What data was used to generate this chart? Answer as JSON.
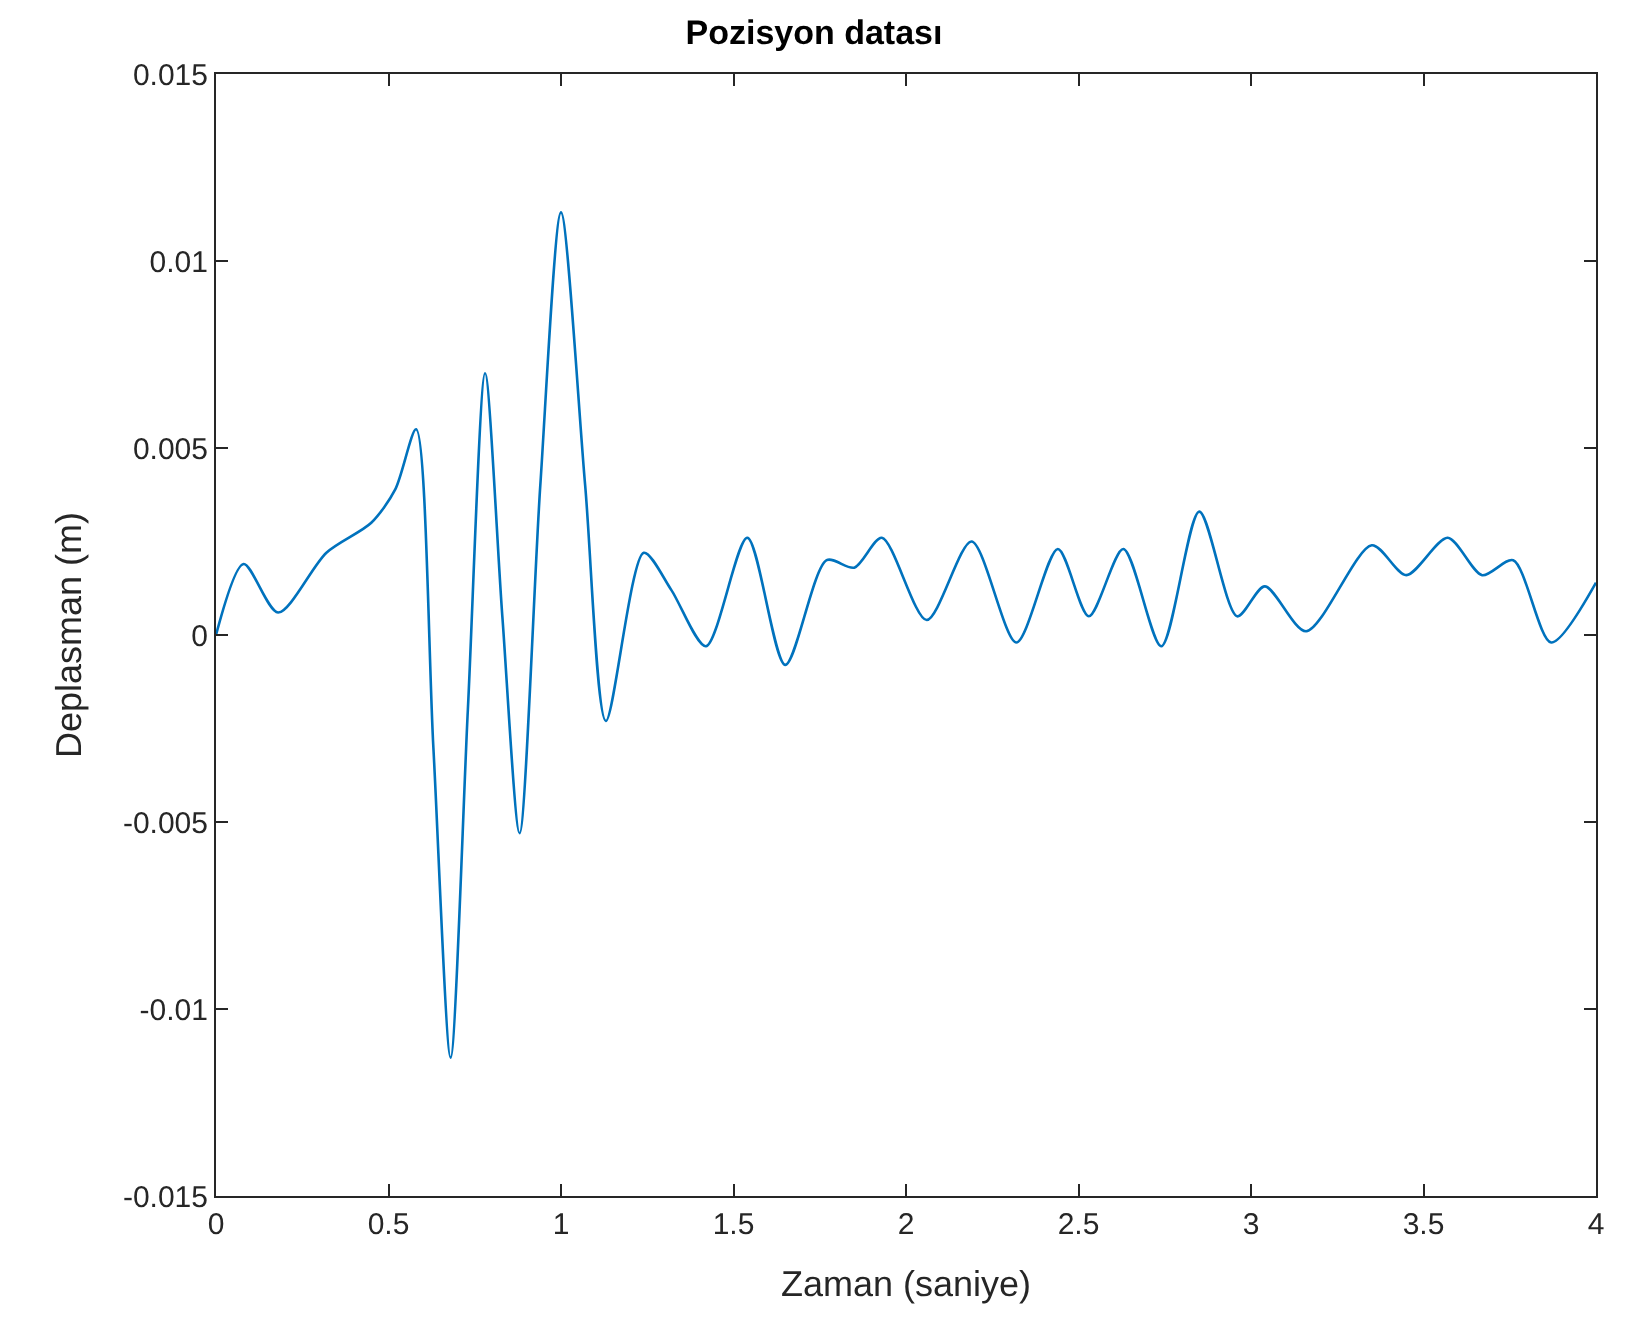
{
  "chart_data": {
    "type": "line",
    "title": "Pozisyon datası",
    "xlabel": "Zaman (saniye)",
    "ylabel": "Deplasman (m)",
    "xlim": [
      0,
      4
    ],
    "ylim": [
      -0.015,
      0.015
    ],
    "xticks": [
      0,
      0.5,
      1,
      1.5,
      2,
      2.5,
      3,
      3.5,
      4
    ],
    "yticks": [
      -0.015,
      -0.01,
      -0.005,
      0,
      0.005,
      0.01,
      0.015
    ],
    "marker": "none",
    "line_style": "solid",
    "x": [
      0,
      0.08,
      0.18,
      0.32,
      0.45,
      0.52,
      0.58,
      0.63,
      0.68,
      0.73,
      0.78,
      0.83,
      0.88,
      0.94,
      1.0,
      1.07,
      1.13,
      1.24,
      1.32,
      1.42,
      1.54,
      1.65,
      1.77,
      1.85,
      1.93,
      2.06,
      2.19,
      2.32,
      2.44,
      2.53,
      2.63,
      2.74,
      2.85,
      2.96,
      3.04,
      3.16,
      3.35,
      3.45,
      3.57,
      3.67,
      3.76,
      3.87,
      4.0
    ],
    "series": [
      {
        "color": "#0072bd",
        "values": [
          0,
          0.0019,
          0.0006,
          0.0022,
          0.003,
          0.0039,
          0.0055,
          -0.003,
          -0.0113,
          -0.002,
          0.007,
          0.0005,
          -0.0053,
          0.004,
          0.0113,
          0.004,
          -0.0023,
          0.0022,
          0.0012,
          -0.0003,
          0.0026,
          -0.0008,
          0.002,
          0.0018,
          0.0026,
          0.0004,
          0.0025,
          -0.0002,
          0.0023,
          0.0005,
          0.0023,
          -0.0003,
          0.0033,
          0.0005,
          0.0013,
          0.0001,
          0.0024,
          0.0016,
          0.0026,
          0.0016,
          0.002,
          -0.0002,
          0.0014
        ]
      }
    ]
  }
}
